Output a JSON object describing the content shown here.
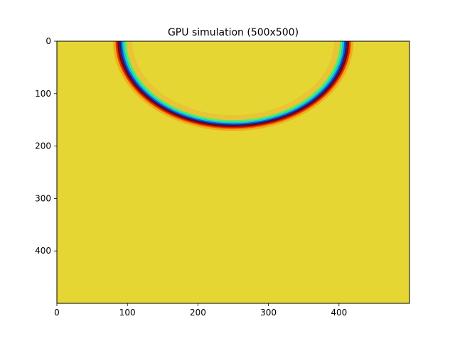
{
  "chart_data": {
    "type": "heatmap",
    "title": "GPU simulation (500x500)",
    "xlabel": "",
    "ylabel": "",
    "xlim": [
      0,
      500
    ],
    "ylim": [
      500,
      0
    ],
    "xticks": [
      0,
      100,
      200,
      300,
      400
    ],
    "yticks": [
      0,
      100,
      200,
      300,
      400
    ],
    "grid": false,
    "colormap": "jet",
    "background_color": "#e5d634",
    "wave_front": {
      "center": [
        250,
        0
      ],
      "radius": 162,
      "description_values": "circular wavefront"
    },
    "ring_colors": {
      "outer_dark_red": "#7a0000",
      "red": "#d92000",
      "orange": "#ff8a00",
      "blue_dark": "#14207a",
      "blue": "#1a52d6",
      "cyan": "#18c4d8",
      "green": "#4cf06a",
      "faint_orange": "#f2a43a"
    }
  }
}
